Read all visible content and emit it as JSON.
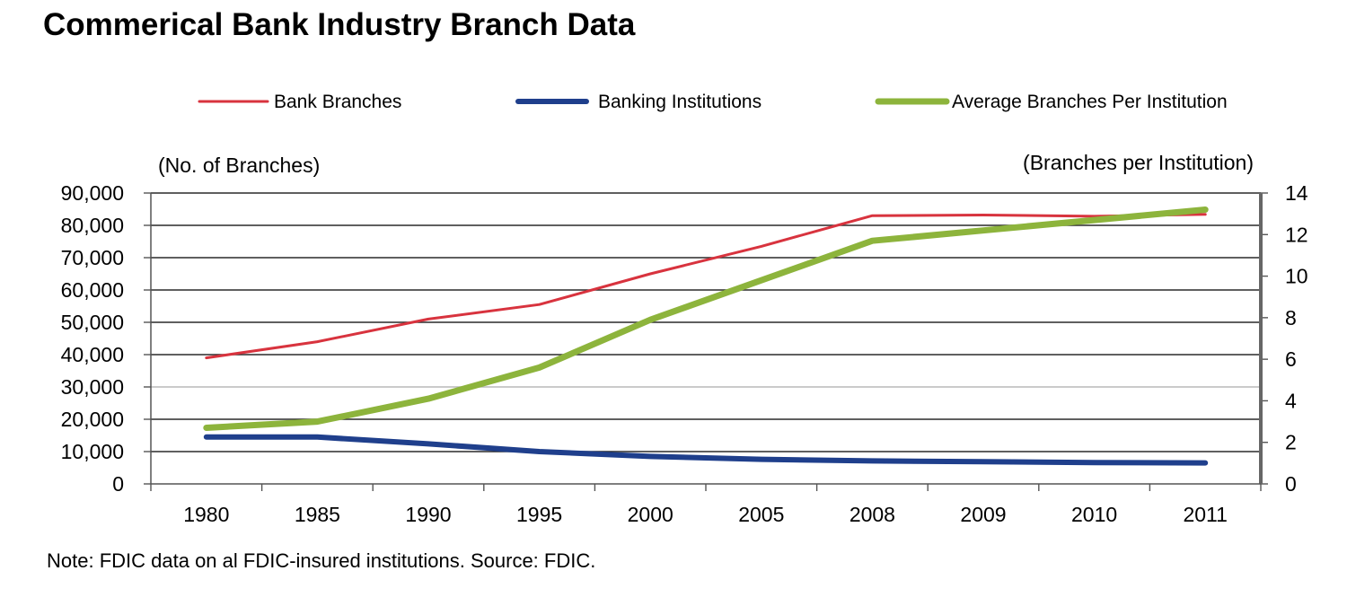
{
  "title": "Commerical Bank Industry Branch Data",
  "note": "Note:  FDIC data on al FDIC-insured institutions. Source:  FDIC.",
  "colors": {
    "bank_branches": "#d8333e",
    "banking_institutions": "#1f3f8c",
    "average_branches": "#8db43c"
  },
  "chart_data": {
    "type": "line",
    "categories": [
      "1980",
      "1985",
      "1990",
      "1995",
      "2000",
      "2005",
      "2008",
      "2009",
      "2010",
      "2011"
    ],
    "left_axis": {
      "label": "(No. of Branches)",
      "ylim": [
        0,
        90000
      ],
      "ticks": [
        0,
        10000,
        20000,
        30000,
        40000,
        50000,
        60000,
        70000,
        80000,
        90000
      ],
      "tick_labels": [
        "0",
        "10,000",
        "20,000",
        "30,000",
        "40,000",
        "50,000",
        "60,000",
        "70,000",
        "80,000",
        "90,000"
      ]
    },
    "right_axis": {
      "label": "(Branches per Institution)",
      "ylim": [
        0,
        14
      ],
      "ticks": [
        0,
        2,
        4,
        6,
        8,
        10,
        12,
        14
      ],
      "tick_labels": [
        "0",
        "2",
        "4",
        "6",
        "8",
        "10",
        "12",
        "14"
      ]
    },
    "series": [
      {
        "name": "Bank Branches",
        "axis": "left",
        "color": "#d8333e",
        "values": [
          39000,
          44000,
          51000,
          55500,
          65000,
          73500,
          83000,
          83200,
          82800,
          83400
        ]
      },
      {
        "name": "Banking Institutions",
        "axis": "left",
        "color": "#1f3f8c",
        "values": [
          14500,
          14500,
          12400,
          10000,
          8500,
          7600,
          7100,
          6900,
          6600,
          6500
        ]
      },
      {
        "name": "Average Branches Per Institution",
        "axis": "right",
        "color": "#8db43c",
        "values": [
          2.7,
          3.0,
          4.1,
          5.6,
          7.9,
          9.8,
          11.7,
          12.2,
          12.7,
          13.2
        ]
      }
    ],
    "legend_position": "top",
    "grid": true
  }
}
